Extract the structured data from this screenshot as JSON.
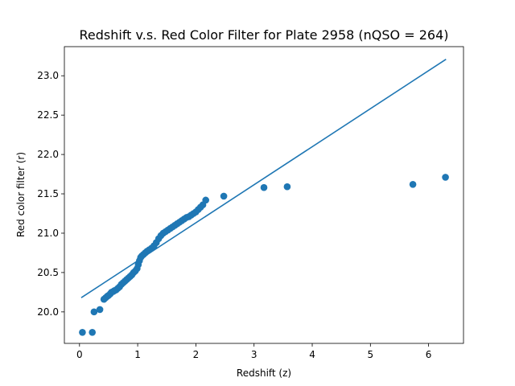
{
  "chart_data": {
    "type": "scatter",
    "title": "Redshift v.s. Red Color Filter for Plate 2958 (nQSO = 264)",
    "xlabel": "Redshift (z)",
    "ylabel": "Red color filter (r)",
    "xlim": [
      -0.26,
      6.6
    ],
    "ylim": [
      19.6,
      23.37
    ],
    "x_ticks": [
      0,
      1,
      2,
      3,
      4,
      5,
      6
    ],
    "y_ticks": [
      20.0,
      20.5,
      21.0,
      21.5,
      22.0,
      22.5,
      23.0
    ],
    "x_tick_labels": [
      "0",
      "1",
      "2",
      "3",
      "4",
      "5",
      "6"
    ],
    "y_tick_labels": [
      "20.0",
      "20.5",
      "21.0",
      "21.5",
      "22.0",
      "22.5",
      "23.0"
    ],
    "grid": false,
    "color": "#1f77b4",
    "series": [
      {
        "kind": "points",
        "x": [
          0.05,
          0.22,
          0.25,
          0.35,
          0.42,
          0.45,
          0.48,
          0.5,
          0.53,
          0.55,
          0.58,
          0.6,
          0.63,
          0.66,
          0.69,
          0.72,
          0.75,
          0.78,
          0.81,
          0.84,
          0.87,
          0.9,
          0.93,
          0.96,
          0.99,
          1.01,
          1.03,
          1.05,
          1.07,
          1.1,
          1.13,
          1.16,
          1.2,
          1.24,
          1.28,
          1.32,
          1.36,
          1.4,
          1.44,
          1.48,
          1.52,
          1.56,
          1.6,
          1.64,
          1.68,
          1.72,
          1.76,
          1.8,
          1.84,
          1.88,
          1.92,
          1.96,
          2.0,
          2.04,
          2.08,
          2.12,
          2.17,
          2.48,
          3.17,
          3.57,
          5.73,
          6.29
        ],
        "y": [
          19.74,
          19.74,
          20.0,
          20.03,
          20.16,
          20.18,
          20.2,
          20.21,
          20.23,
          20.25,
          20.26,
          20.27,
          20.28,
          20.3,
          20.32,
          20.35,
          20.37,
          20.39,
          20.41,
          20.43,
          20.45,
          20.47,
          20.5,
          20.52,
          20.55,
          20.6,
          20.65,
          20.69,
          20.71,
          20.73,
          20.75,
          20.77,
          20.79,
          20.81,
          20.84,
          20.88,
          20.93,
          20.97,
          21.0,
          21.02,
          21.04,
          21.06,
          21.08,
          21.1,
          21.12,
          21.14,
          21.16,
          21.18,
          21.2,
          21.21,
          21.23,
          21.25,
          21.27,
          21.3,
          21.33,
          21.36,
          21.42,
          21.47,
          21.58,
          21.59,
          21.62,
          21.71
        ]
      },
      {
        "kind": "line",
        "x": [
          0.03,
          6.3
        ],
        "y": [
          20.18,
          23.21
        ]
      }
    ]
  }
}
